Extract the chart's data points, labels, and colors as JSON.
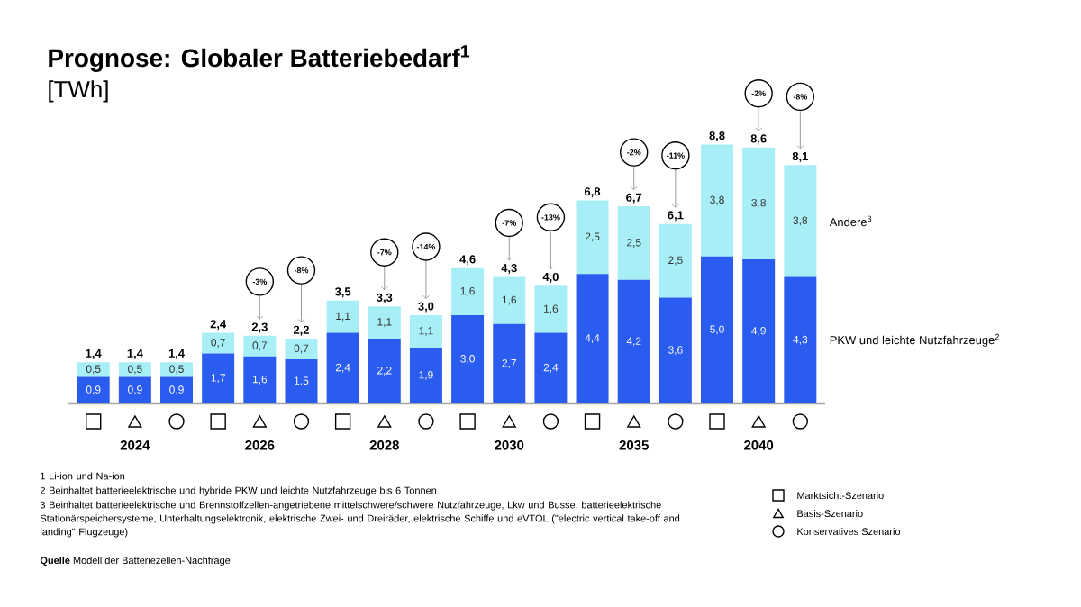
{
  "chart_data": {
    "type": "bar",
    "stacked": true,
    "title": "Prognose: Globaler Batteriebedarf$^{1}$",
    "subtitle": "[TWh]",
    "categories": [
      null,
      "2024",
      null,
      null,
      "2026",
      null,
      null,
      "2028",
      null,
      null,
      "2030",
      null,
      null,
      "2035",
      null,
      null,
      "2040",
      null
    ],
    "series": [
      {
        "name": "PKW und leichte Nutzfahrzeuge$^{2}$",
        "color": "#2b5cf0",
        "values": [
          0.9,
          0.9,
          0.9,
          1.7,
          1.6,
          1.5,
          2.4,
          2.2,
          1.9,
          3.0,
          2.7,
          2.4,
          4.4,
          4.2,
          3.6,
          5.0,
          4.9,
          4.3
        ],
        "value_labels": [
          "0,9",
          "0,9",
          "0,9",
          "1,7",
          "1,6",
          "1,5",
          "2,4",
          "2,2",
          "1,9",
          "3,0",
          "2,7",
          "2,4",
          "4,4",
          "4,2",
          "3,6",
          "5,0",
          "4,9",
          "4,3"
        ]
      },
      {
        "name": "Andere$^{3}$",
        "color": "#a8eef6",
        "values": [
          0.5,
          0.5,
          0.5,
          0.7,
          0.7,
          0.7,
          1.1,
          1.1,
          1.1,
          1.6,
          1.6,
          1.6,
          2.5,
          2.5,
          2.5,
          3.8,
          3.8,
          3.8
        ],
        "value_labels": [
          "0,5",
          "0,5",
          "0,5",
          "0,7",
          "0,7",
          "0,7",
          "1,1",
          "1,1",
          "1,1",
          "1,6",
          "1,6",
          "1,6",
          "2,5",
          "2,5",
          "2,5",
          "3,8",
          "3,8",
          "3,8"
        ]
      }
    ],
    "totals": [
      "1,4",
      "1,4",
      "1,4",
      "2,4",
      "2,3",
      "2,2",
      "3,5",
      "3,3",
      "3,0",
      "4,6",
      "4,3",
      "4,0",
      "6,8",
      "6,7",
      "6,1",
      "8,8",
      "8,6",
      "8,1"
    ],
    "annotations": [
      "-3%",
      "-8%",
      "-7%",
      "-14%",
      "-7%",
      "-13%",
      "-2%",
      "-11%",
      "-2%",
      "-8%",
      "1 Li-ion und Na-ion",
      "2 Beinhaltet batterieelektrische und hybride PKW und leichte Nutzfahrzeuge bis 6 Tonnen",
      "3 Beinhaltet batterieelektrische und Brennstoffzellen-angetriebene mittelschwere/schwere Nutzfahrzeuge, Lkw und Busse, batterieelektrische Stationärspeichersysteme, Unterhaltungselektronik, elektrische Zwei- und Dreiräder, elektrische Schiffe und eVTOL (\"electric vertical take-off and landing\" Flugzeuge)",
      "**Quelle** Modell der Batteriezellen-Nachfrage",
      "Marktsicht-Szenario",
      "Basis-Szenario",
      "Konservatives Szenario"
    ]
  }
}
